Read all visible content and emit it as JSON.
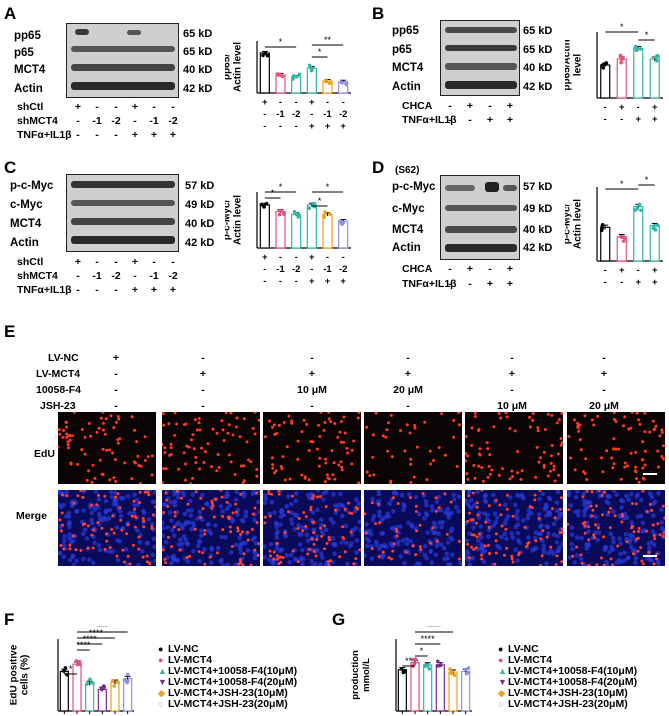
{
  "panels": {
    "A": {
      "label": "A",
      "rows": [
        {
          "name": "pp65",
          "kd": "65 kD"
        },
        {
          "name": "p65",
          "kd": "65 kD"
        },
        {
          "name": "MCT4",
          "kd": "40 kD"
        },
        {
          "name": "Actin",
          "kd": "42 kD"
        }
      ],
      "conditions": [
        {
          "name": "shCtl",
          "values": [
            "+",
            "-",
            "-",
            "+",
            "-",
            "-"
          ]
        },
        {
          "name": "shMCT4",
          "values": [
            "-",
            "-1",
            "-2",
            "-",
            "-1",
            "-2"
          ]
        },
        {
          "name": "TNFα+IL1β",
          "values": [
            "-",
            "-",
            "-",
            "+",
            "+",
            "+"
          ]
        }
      ],
      "ylabel": "pp65/\nActin level",
      "bottom_labels": [
        [
          "+",
          "-",
          "-",
          "+",
          "-",
          "-"
        ],
        [
          "-",
          "-1",
          "-2",
          "-",
          "-1",
          "-2"
        ],
        [
          "-",
          "-",
          "-",
          "+",
          "+",
          "+"
        ]
      ],
      "sig": [
        "*",
        "*",
        "**"
      ]
    },
    "B": {
      "label": "B",
      "rows": [
        {
          "name": "pp65",
          "kd": "65 kD"
        },
        {
          "name": "p65",
          "kd": "65 kD"
        },
        {
          "name": "MCT4",
          "kd": "40 kD"
        },
        {
          "name": "Actin",
          "kd": "42 kD"
        }
      ],
      "conditions": [
        {
          "name": "CHCA",
          "values": [
            "-",
            "+",
            "-",
            "+"
          ]
        },
        {
          "name": "TNFα+IL1β",
          "values": [
            "-",
            "-",
            "+",
            "+"
          ]
        }
      ],
      "ylabel": "pp65/Actin\nlevel",
      "bottom_labels": [
        [
          "-",
          "+",
          "-",
          "+"
        ],
        [
          "-",
          "-",
          "+",
          "+"
        ]
      ],
      "sig": [
        "*",
        "*"
      ]
    },
    "C": {
      "label": "C",
      "rows": [
        {
          "name": "p-c-Myc",
          "kd": "57 kD"
        },
        {
          "name": "c-Myc",
          "kd": "49 kD"
        },
        {
          "name": "MCT4",
          "kd": "40 kD"
        },
        {
          "name": "Actin",
          "kd": "42 kD"
        }
      ],
      "conditions": [
        {
          "name": "shCtl",
          "values": [
            "+",
            "-",
            "-",
            "+",
            "-",
            "-"
          ]
        },
        {
          "name": "shMCT4",
          "values": [
            "-",
            "-1",
            "-2",
            "-",
            "-1",
            "-2"
          ]
        },
        {
          "name": "TNFα+IL1β",
          "values": [
            "-",
            "-",
            "-",
            "+",
            "+",
            "+"
          ]
        }
      ],
      "ylabel": "p-c-Myc/\nActin level",
      "bottom_labels": [
        [
          "+",
          "-",
          "-",
          "+",
          "-",
          "-"
        ],
        [
          "-",
          "-1",
          "-2",
          "-",
          "-1",
          "-2"
        ],
        [
          "-",
          "-",
          "-",
          "+",
          "+",
          "+"
        ]
      ],
      "sig": [
        "*",
        "*",
        "*",
        "*"
      ]
    },
    "D": {
      "label": "D",
      "superscript_label": "(S62)",
      "rows": [
        {
          "name": "p-c-Myc",
          "kd": "57 kD"
        },
        {
          "name": "c-Myc",
          "kd": "49 kD"
        },
        {
          "name": "MCT4",
          "kd": "40 kD"
        },
        {
          "name": "Actin",
          "kd": "42 kD"
        }
      ],
      "conditions": [
        {
          "name": "CHCA",
          "values": [
            "-",
            "+",
            "-",
            "+"
          ]
        },
        {
          "name": "TNFα+IL1β",
          "values": [
            "-",
            "-",
            "+",
            "+"
          ]
        }
      ],
      "ylabel": "p-c-Myc/\nActin level",
      "bottom_labels": [
        [
          "-",
          "+",
          "-",
          "+"
        ],
        [
          "-",
          "-",
          "+",
          "+"
        ]
      ],
      "sig": [
        "*",
        "*"
      ]
    },
    "E": {
      "label": "E",
      "header_rows": [
        {
          "name": "LV-NC",
          "values": [
            "+",
            "-",
            "-",
            "-",
            "-",
            "-"
          ]
        },
        {
          "name": "LV-MCT4",
          "values": [
            "-",
            "+",
            "+",
            "+",
            "+",
            "+"
          ]
        },
        {
          "name": "10058-F4",
          "values": [
            "-",
            "-",
            "10 μM",
            "20 μM",
            "-",
            "-"
          ]
        },
        {
          "name": "JSH-23",
          "values": [
            "-",
            "-",
            "-",
            "-",
            "10 μM",
            "20 μM"
          ]
        }
      ],
      "image_rows": [
        {
          "name": "EdU"
        },
        {
          "name": "Merge"
        }
      ]
    },
    "F": {
      "label": "F",
      "ylabel": "EdU positive\ncells (%)",
      "sig": [
        "*",
        "***",
        "****",
        "****",
        "****"
      ],
      "legend": [
        {
          "name": "LV-NC",
          "color": "#000000"
        },
        {
          "name": "LV-MCT4",
          "color": "#e8507a"
        },
        {
          "name": "LV-MCT4+10058-F4(10μM)",
          "color": "#35b6a7"
        },
        {
          "name": "LV-MCT4+10058-F4(20μM)",
          "color": "#7b2d8e"
        },
        {
          "name": "LV-MCT4+JSH-23(10μM)",
          "color": "#f0a020"
        },
        {
          "name": "LV-MCT4+JSH-23(20μM)",
          "color": "#8f8fe0"
        }
      ]
    },
    "G": {
      "label": "G",
      "ylabel": "Lactate\nproduction\nmmol/L",
      "sig": [
        "**",
        "*",
        "****",
        "****"
      ],
      "legend": [
        {
          "name": "LV-NC",
          "color": "#000000"
        },
        {
          "name": "LV-MCT4",
          "color": "#e8507a"
        },
        {
          "name": "LV-MCT4+10058-F4(10μM)",
          "color": "#35b6a7"
        },
        {
          "name": "LV-MCT4+10058-F4(20μM)",
          "color": "#7b2d8e"
        },
        {
          "name": "LV-MCT4+JSH-23(10μM)",
          "color": "#f0a020"
        },
        {
          "name": "LV-MCT4+JSH-23(20μM)",
          "color": "#8f8fe0"
        }
      ]
    }
  },
  "chart_data": [
    {
      "type": "bar",
      "panel": "A",
      "categories": [
        "1",
        "2",
        "3",
        "4",
        "5",
        "6"
      ],
      "values": [
        1.0,
        0.45,
        0.4,
        0.62,
        0.3,
        0.28
      ],
      "ylim": [
        0,
        1.3
      ],
      "colors": [
        "#000000",
        "#e8507a",
        "#35b6a7",
        "#35b6a7",
        "#f0a020",
        "#8f8fe0"
      ]
    },
    {
      "type": "bar",
      "panel": "B",
      "categories": [
        "1",
        "2",
        "3",
        "4"
      ],
      "values": [
        1.0,
        1.18,
        1.5,
        1.18
      ],
      "ylim": [
        0,
        2.0
      ],
      "colors": [
        "#000000",
        "#e8507a",
        "#35b6a7",
        "#35b6a7"
      ]
    },
    {
      "type": "bar",
      "panel": "C",
      "categories": [
        "1",
        "2",
        "3",
        "4",
        "5",
        "6"
      ],
      "values": [
        1.0,
        0.85,
        0.78,
        1.0,
        0.78,
        0.62
      ],
      "ylim": [
        0,
        1.3
      ],
      "colors": [
        "#000000",
        "#e8507a",
        "#35b6a7",
        "#35b6a7",
        "#f0a020",
        "#8f8fe0"
      ]
    },
    {
      "type": "bar",
      "panel": "D",
      "categories": [
        "1",
        "2",
        "3",
        "4"
      ],
      "values": [
        1.0,
        0.72,
        1.62,
        1.05
      ],
      "ylim": [
        0,
        2.2
      ],
      "colors": [
        "#000000",
        "#e8507a",
        "#35b6a7",
        "#35b6a7"
      ]
    },
    {
      "type": "bar",
      "panel": "F",
      "categories": [
        "LV-NC",
        "LV-MCT4",
        "LV-MCT4+10058-F4(10μM)",
        "LV-MCT4+10058-F4(20μM)",
        "LV-MCT4+JSH-23(10μM)",
        "LV-MCT4+JSH-23(20μM)"
      ],
      "values": [
        33,
        39,
        23,
        18,
        24,
        27
      ],
      "ylim": [
        0,
        60
      ],
      "colors": [
        "#000000",
        "#e8507a",
        "#35b6a7",
        "#7b2d8e",
        "#f0a020",
        "#8f8fe0"
      ]
    },
    {
      "type": "bar",
      "panel": "G",
      "categories": [
        "LV-NC",
        "LV-MCT4",
        "LV-MCT4+10058-F4(10μM)",
        "LV-MCT4+10058-F4(20μM)",
        "LV-MCT4+JSH-23(10μM)",
        "LV-MCT4+JSH-23(20μM)"
      ],
      "values": [
        1.72,
        2.02,
        1.92,
        1.92,
        1.62,
        1.65
      ],
      "ylim": [
        0,
        3.0
      ],
      "colors": [
        "#000000",
        "#e8507a",
        "#35b6a7",
        "#7b2d8e",
        "#f0a020",
        "#8f8fe0"
      ]
    }
  ]
}
